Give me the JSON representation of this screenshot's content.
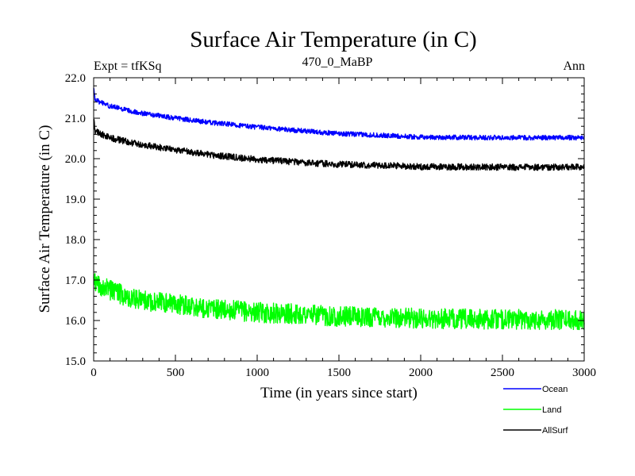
{
  "chart_data": {
    "type": "line",
    "title": "Surface Air Temperature (in C)",
    "subtitle": "470_0_MaBP",
    "left_label": "Expt = tfKSq",
    "right_label": "Ann",
    "xlabel": "Time (in years since start)",
    "ylabel": "Surface Air Temperature (in C)",
    "xlim": [
      0,
      3000
    ],
    "ylim": [
      15.0,
      22.0
    ],
    "xticks": [
      0,
      500,
      1000,
      1500,
      2000,
      2500,
      3000
    ],
    "xtick_labels": [
      "0",
      "500",
      "1000",
      "1500",
      "2000",
      "2500",
      "3000"
    ],
    "yticks": [
      15.0,
      16.0,
      17.0,
      18.0,
      19.0,
      20.0,
      21.0,
      22.0
    ],
    "ytick_labels": [
      "15.0",
      "16.0",
      "17.0",
      "18.0",
      "19.0",
      "20.0",
      "21.0",
      "22.0"
    ],
    "grid": false,
    "legend_position": "bottom-right, below plot",
    "series": [
      {
        "name": "Ocean",
        "color": "#0000ff",
        "noise": 0.06,
        "x": [
          0,
          10,
          50,
          100,
          200,
          300,
          500,
          700,
          1000,
          1300,
          1500,
          1800,
          2000,
          2500,
          3000
        ],
        "y": [
          21.7,
          21.45,
          21.38,
          21.3,
          21.2,
          21.12,
          21.0,
          20.9,
          20.78,
          20.68,
          20.62,
          20.57,
          20.53,
          20.52,
          20.52
        ]
      },
      {
        "name": "Land",
        "color": "#00ff00",
        "noise": 0.25,
        "x": [
          0,
          10,
          50,
          100,
          200,
          300,
          500,
          700,
          1000,
          1300,
          1500,
          1800,
          2000,
          2500,
          3000
        ],
        "y": [
          17.2,
          16.95,
          16.85,
          16.75,
          16.6,
          16.5,
          16.4,
          16.3,
          16.2,
          16.15,
          16.1,
          16.08,
          16.05,
          16.03,
          16.02
        ]
      },
      {
        "name": "AllSurf",
        "color": "#000000",
        "noise": 0.08,
        "x": [
          0,
          10,
          50,
          100,
          200,
          300,
          500,
          700,
          1000,
          1300,
          1500,
          1800,
          2000,
          2500,
          3000
        ],
        "y": [
          20.95,
          20.68,
          20.6,
          20.52,
          20.42,
          20.34,
          20.22,
          20.1,
          19.98,
          19.9,
          19.86,
          19.83,
          19.8,
          19.79,
          19.79
        ]
      }
    ]
  }
}
